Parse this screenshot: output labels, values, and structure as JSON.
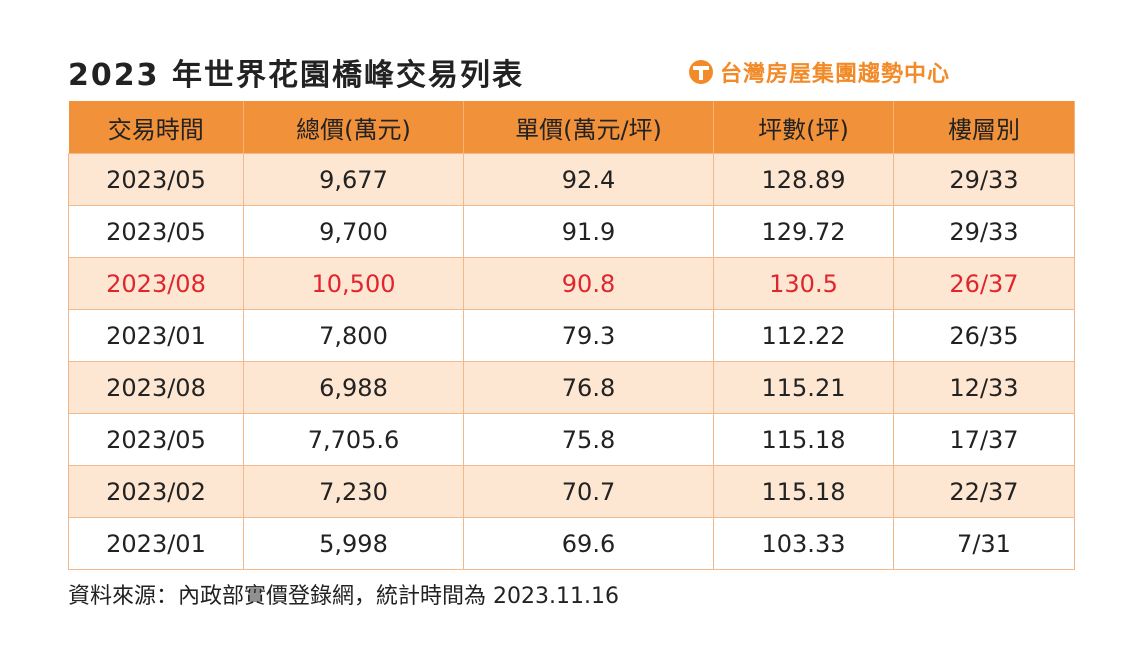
{
  "title": "2023 年世界花園橋峰交易列表",
  "brand": {
    "name": "台灣房屋集團趨勢中心",
    "icon": "logo-t-icon",
    "color": "#f28a28"
  },
  "table": {
    "headers": [
      "交易時間",
      "總價(萬元)",
      "單價(萬元/坪)",
      "坪數(坪)",
      "樓層別"
    ],
    "rows": [
      [
        "2023/05",
        "9,677",
        "92.4",
        "128.89",
        "29/33"
      ],
      [
        "2023/05",
        "9,700",
        "91.9",
        "129.72",
        "29/33"
      ],
      [
        "2023/08",
        "10,500",
        "90.8",
        "130.5",
        "26/37"
      ],
      [
        "2023/01",
        "7,800",
        "79.3",
        "112.22",
        "26/35"
      ],
      [
        "2023/08",
        "6,988",
        "76.8",
        "115.21",
        "12/33"
      ],
      [
        "2023/05",
        "7,705.6",
        "75.8",
        "115.18",
        "17/37"
      ],
      [
        "2023/02",
        "7,230",
        "70.7",
        "115.18",
        "22/37"
      ],
      [
        "2023/01",
        "5,998",
        "69.6",
        "103.33",
        "7/31"
      ]
    ],
    "header_color": "#f1913a",
    "stripe_color": "#fde6d2",
    "highlight_color": "#e0262c"
  },
  "source": "資料來源：內政部實價登錄網，統計時間為 2023.11.16"
}
